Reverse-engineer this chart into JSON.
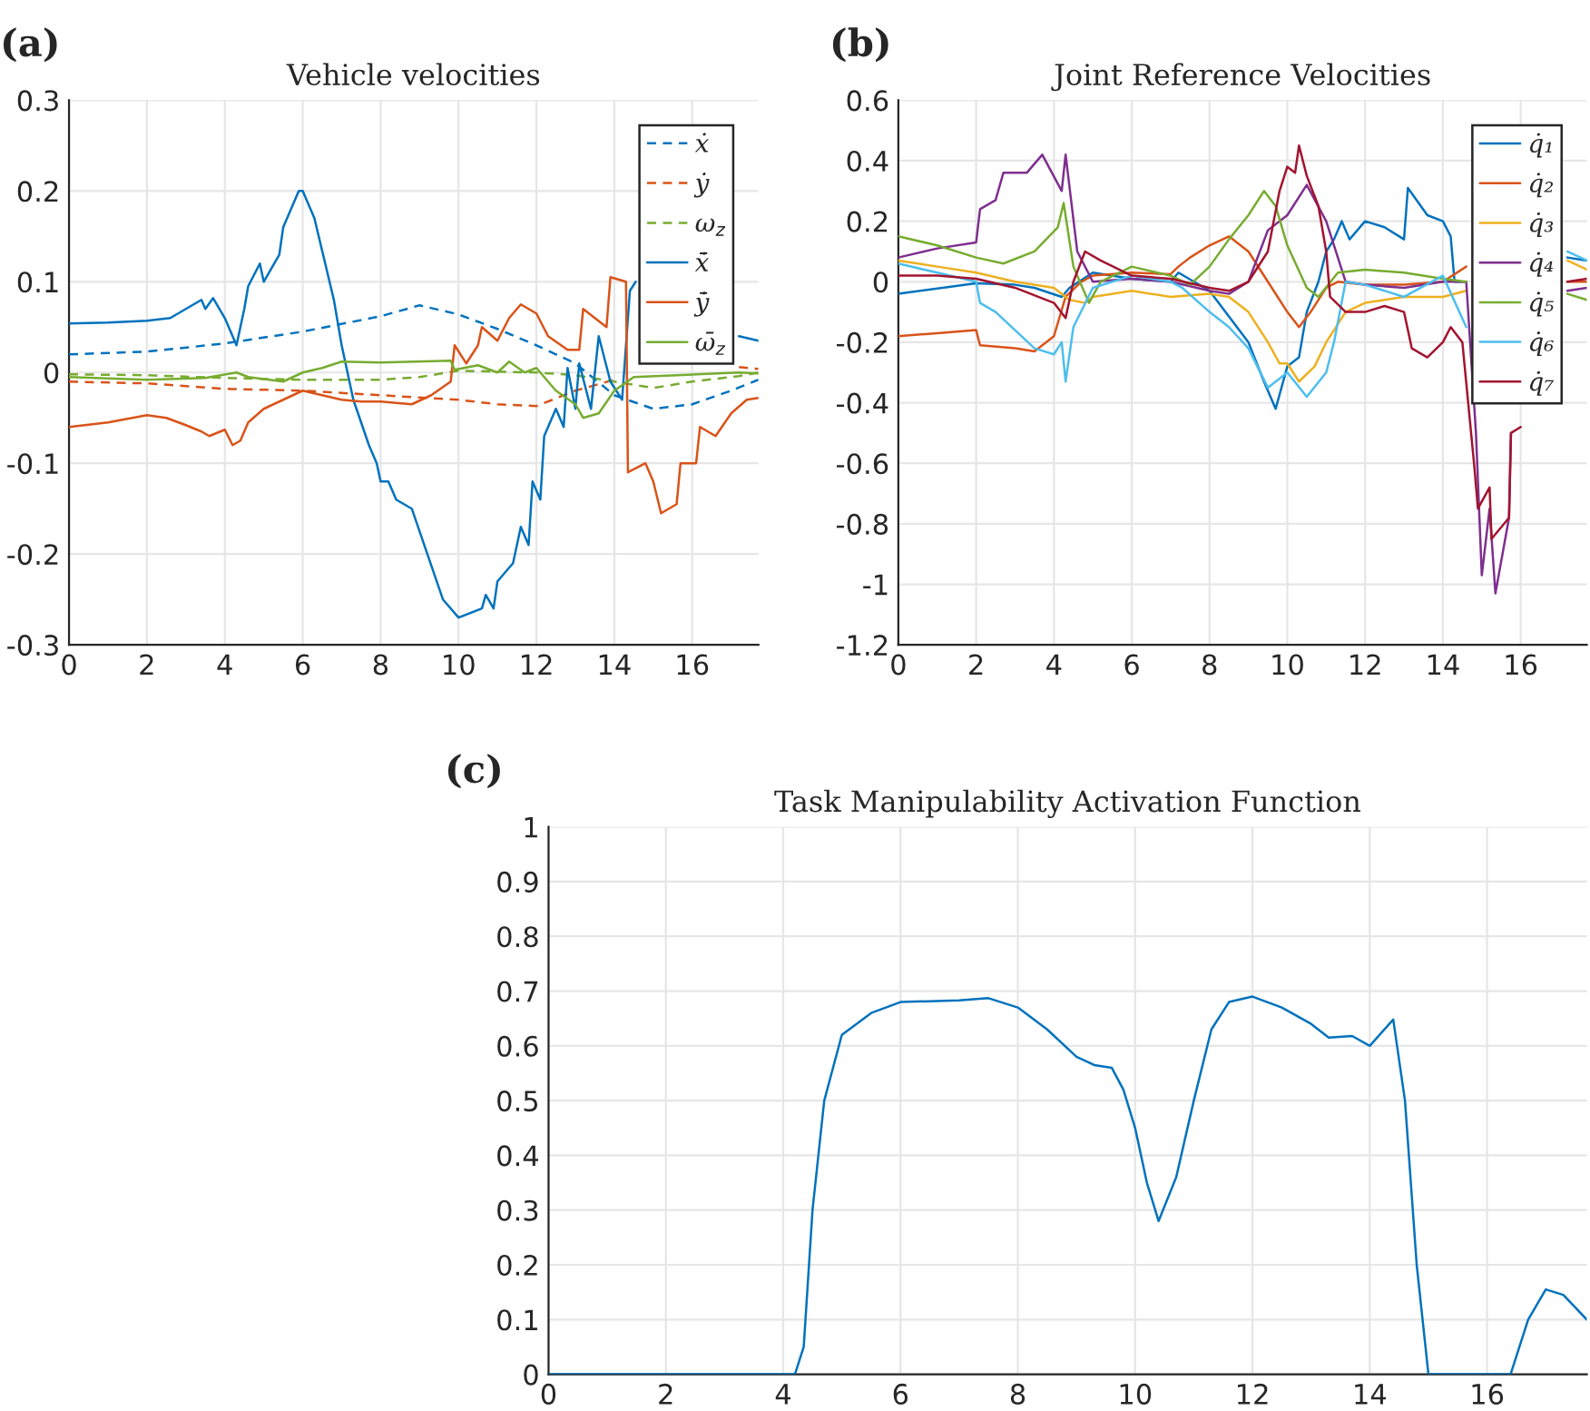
{
  "chart_data": [
    {
      "type": "line",
      "title": "Vehicle velocities",
      "annotations": [
        "(a)"
      ],
      "xlim": [
        0,
        17.7
      ],
      "xticks": [
        0,
        2,
        4,
        6,
        8,
        10,
        12,
        14,
        16
      ],
      "ylim": [
        -0.3,
        0.3
      ],
      "yticks": [
        -0.3,
        -0.2,
        -0.1,
        0,
        0.1,
        0.2,
        0.3
      ],
      "grid": true,
      "legend": "top right",
      "series": [
        {
          "name": "ẋ",
          "color": "#0072bd",
          "line_style": "dashed",
          "x": [
            0,
            2,
            4,
            6,
            8,
            9,
            10,
            11,
            12,
            13,
            14,
            15,
            16,
            17,
            17.7
          ],
          "values": [
            0.02,
            0.023,
            0.032,
            0.045,
            0.062,
            0.074,
            0.064,
            0.048,
            0.03,
            0.01,
            -0.025,
            -0.04,
            -0.035,
            -0.02,
            -0.008
          ]
        },
        {
          "name": "ẏ",
          "color": "#d95319",
          "line_style": "dashed",
          "x": [
            0,
            2,
            4,
            6,
            8,
            10,
            11,
            12,
            13,
            14,
            15,
            16,
            17.2,
            17.7
          ],
          "values": [
            -0.01,
            -0.012,
            -0.018,
            -0.02,
            -0.025,
            -0.03,
            -0.035,
            -0.037,
            -0.02,
            -0.008,
            null,
            null,
            0.006,
            0.004
          ]
        },
        {
          "name": "ω$_{z}$",
          "color": "#77ac30",
          "line_style": "dashed",
          "x": [
            0,
            2,
            4,
            6,
            8,
            9,
            10,
            12,
            13,
            14,
            15,
            16,
            17.2,
            17.7
          ],
          "values": [
            -0.002,
            -0.003,
            -0.006,
            -0.008,
            -0.008,
            -0.005,
            0.002,
            0,
            -0.003,
            -0.01,
            -0.017,
            -0.01,
            -0.004,
            0
          ]
        },
        {
          "name": "ẋ̄",
          "color": "#0072bd",
          "line_style": "solid",
          "x": [
            0,
            1,
            2,
            2.6,
            3.2,
            3.4,
            3.5,
            3.7,
            4,
            4.3,
            4.5,
            4.6,
            4.9,
            5,
            5.4,
            5.5,
            5.9,
            6,
            6.3,
            6.8,
            7,
            7.3,
            7.7,
            7.9,
            8,
            8.2,
            8.4,
            8.8,
            9.2,
            9.6,
            10,
            10.6,
            10.7,
            10.9,
            11,
            11.4,
            11.6,
            11.8,
            11.9,
            12.1,
            12.2,
            12.5,
            12.7,
            12.8,
            13,
            13.1,
            13.4,
            13.6,
            13.9,
            14.2,
            14.4,
            14.55,
            16,
            17.2,
            17.7
          ],
          "values": [
            0.054,
            0.055,
            0.057,
            0.06,
            0.075,
            0.08,
            0.07,
            0.082,
            0.06,
            0.03,
            0.07,
            0.095,
            0.12,
            0.1,
            0.13,
            0.16,
            0.2,
            0.2,
            0.17,
            0.08,
            0.03,
            -0.03,
            -0.08,
            -0.1,
            -0.12,
            -0.12,
            -0.14,
            -0.15,
            -0.2,
            -0.25,
            -0.27,
            -0.26,
            -0.245,
            -0.26,
            -0.23,
            -0.21,
            -0.17,
            -0.19,
            -0.12,
            -0.14,
            -0.07,
            -0.04,
            -0.06,
            0.005,
            -0.04,
            0.01,
            -0.04,
            0.04,
            -0.01,
            -0.03,
            0.09,
            0.1,
            null,
            0.04,
            0.035
          ]
        },
        {
          "name": "ẏ̄",
          "color": "#d95319",
          "line_style": "solid",
          "x": [
            0,
            1,
            2,
            2.5,
            3,
            3.4,
            3.6,
            4,
            4.2,
            4.4,
            4.6,
            5,
            5.5,
            6,
            6.5,
            7,
            7.5,
            8,
            8.8,
            9.3,
            9.8,
            9.9,
            10.2,
            10.5,
            10.6,
            11,
            11.3,
            11.6,
            12,
            12.3,
            12.8,
            13.1,
            13.2,
            13.8,
            13.9,
            14.3,
            14.35,
            14.8,
            15,
            15.2,
            15.6,
            15.7,
            16.1,
            16.2,
            16.6,
            17,
            17.4,
            17.7
          ],
          "values": [
            -0.06,
            -0.055,
            -0.047,
            -0.05,
            -0.058,
            -0.065,
            -0.07,
            -0.063,
            -0.08,
            -0.075,
            -0.055,
            -0.04,
            -0.03,
            -0.02,
            -0.025,
            -0.03,
            -0.032,
            -0.032,
            -0.035,
            -0.025,
            -0.01,
            0.03,
            0.01,
            0.03,
            0.05,
            0.035,
            0.06,
            0.075,
            0.065,
            0.04,
            0.025,
            0.025,
            0.07,
            0.05,
            0.105,
            0.1,
            -0.11,
            -0.1,
            -0.12,
            -0.155,
            -0.145,
            -0.1,
            -0.1,
            -0.06,
            -0.07,
            -0.045,
            -0.03,
            -0.028
          ]
        },
        {
          "name": "ω̄$_{z}$",
          "color": "#77ac30",
          "line_style": "solid",
          "x": [
            0,
            2,
            3.5,
            4.3,
            4.6,
            5.5,
            6,
            6.5,
            7,
            8,
            9.8,
            9.9,
            10.5,
            11,
            11.3,
            11.7,
            12,
            12.5,
            13,
            13.2,
            13.6,
            14,
            14.5,
            17.2,
            17.7
          ],
          "values": [
            -0.005,
            -0.008,
            -0.006,
            0,
            -0.005,
            -0.01,
            0,
            0.005,
            0.012,
            0.011,
            0.013,
            0.003,
            0.008,
            0,
            0.012,
            0,
            0.005,
            -0.02,
            -0.035,
            -0.05,
            -0.045,
            -0.02,
            -0.005,
            0,
            -0.001
          ]
        }
      ]
    },
    {
      "type": "line",
      "title": "Joint Reference Velocities",
      "annotations": [
        "(b)"
      ],
      "xlim": [
        0,
        17.7
      ],
      "xticks": [
        0,
        2,
        4,
        6,
        8,
        10,
        12,
        14,
        16
      ],
      "ylim": [
        -1.2,
        0.6
      ],
      "yticks": [
        -1.2,
        -1,
        -0.8,
        -0.6,
        -0.4,
        -0.2,
        0,
        0.2,
        0.4,
        0.6
      ],
      "grid": true,
      "legend": "top right",
      "series": [
        {
          "name": "q̇₁",
          "color": "#0072bd",
          "x": [
            0,
            2,
            3,
            3.5,
            4.2,
            4.4,
            5,
            6,
            7,
            7.2,
            8,
            9,
            9.4,
            9.7,
            10,
            10.3,
            10.5,
            10.8,
            11,
            11.2,
            11.4,
            11.6,
            12,
            12.5,
            13,
            13.1,
            13.6,
            14,
            14.2,
            14.3,
            14.6,
            16,
            17.2,
            17.7
          ],
          "values": [
            -0.04,
            -0.005,
            -0.01,
            -0.02,
            -0.05,
            -0.02,
            0.03,
            0.01,
            0,
            0.03,
            -0.03,
            -0.2,
            -0.33,
            -0.42,
            -0.28,
            -0.25,
            -0.1,
            0,
            0.1,
            0.14,
            0.2,
            0.14,
            0.2,
            0.18,
            0.14,
            0.31,
            0.22,
            0.2,
            0.15,
            0,
            0,
            null,
            0.08,
            0.07
          ]
        },
        {
          "name": "q̇₂",
          "color": "#d95319",
          "x": [
            0,
            1,
            2,
            2.1,
            3,
            3.5,
            4,
            4.3,
            4.7,
            5,
            6,
            7,
            7.2,
            7.5,
            8,
            8.5,
            9,
            9.5,
            10,
            10.3,
            10.6,
            11,
            11.3,
            12,
            13,
            14,
            14.6,
            16,
            17.2,
            17.7
          ],
          "values": [
            -0.18,
            -0.17,
            -0.16,
            -0.21,
            -0.22,
            -0.23,
            -0.18,
            -0.05,
            0,
            0.02,
            0.03,
            0.025,
            0.05,
            0.08,
            0.12,
            0.15,
            0.1,
            0,
            -0.1,
            -0.15,
            -0.1,
            -0.02,
            0,
            -0.01,
            -0.01,
            0,
            0.05,
            null,
            0,
            0
          ]
        },
        {
          "name": "q̇₃",
          "color": "#edb120",
          "x": [
            0,
            1,
            2,
            3,
            4,
            4.4,
            4.8,
            5,
            6,
            7,
            8,
            8.5,
            9,
            9.5,
            9.8,
            10,
            10.3,
            10.7,
            11,
            11.5,
            12,
            13,
            14,
            14.6,
            16,
            17.2,
            17.7
          ],
          "values": [
            0.07,
            0.05,
            0.03,
            0,
            -0.02,
            -0.06,
            -0.07,
            -0.05,
            -0.03,
            -0.05,
            -0.04,
            -0.05,
            -0.1,
            -0.2,
            -0.27,
            -0.27,
            -0.33,
            -0.28,
            -0.2,
            -0.1,
            -0.07,
            -0.05,
            -0.05,
            -0.03,
            null,
            0.07,
            0.04
          ]
        },
        {
          "name": "q̇₄",
          "color": "#7e2f8e",
          "x": [
            0,
            1,
            2,
            2.1,
            2.5,
            2.7,
            3.3,
            3.7,
            4.2,
            4.3,
            4.6,
            5,
            6,
            7,
            8,
            8.5,
            9,
            9.5,
            10,
            10.5,
            11,
            11.5,
            12,
            13,
            14,
            14.6,
            14.85,
            15,
            15.2,
            15.35,
            15.7,
            15.75,
            16,
            17.2,
            17.7
          ],
          "values": [
            0.08,
            0.11,
            0.13,
            0.24,
            0.27,
            0.36,
            0.36,
            0.42,
            0.3,
            0.42,
            0.1,
            0,
            0.01,
            0,
            -0.03,
            -0.04,
            0,
            0.17,
            0.22,
            0.32,
            0.2,
            0,
            -0.01,
            -0.02,
            0,
            0,
            -0.5,
            -0.97,
            -0.75,
            -1.03,
            -0.78,
            -0.5,
            null,
            -0.03,
            -0.02
          ]
        },
        {
          "name": "q̇₅",
          "color": "#77ac30",
          "x": [
            0,
            1,
            2,
            2.7,
            3.5,
            4.1,
            4.25,
            4.5,
            4.9,
            5.2,
            6,
            7,
            7.5,
            8,
            8.5,
            9,
            9.4,
            9.7,
            10,
            10.5,
            10.8,
            11.3,
            12,
            13,
            14,
            14.6,
            16,
            17.2,
            17.7
          ],
          "values": [
            0.15,
            0.12,
            0.08,
            0.06,
            0.1,
            0.18,
            0.26,
            0.05,
            -0.07,
            0,
            0.05,
            0.02,
            -0.01,
            0.05,
            0.14,
            0.22,
            0.3,
            0.25,
            0.12,
            -0.02,
            -0.05,
            0.03,
            0.04,
            0.03,
            0.01,
            0,
            null,
            -0.04,
            -0.06
          ]
        },
        {
          "name": "q̇₆",
          "color": "#4dbeee",
          "x": [
            0,
            1,
            2,
            2.1,
            2.5,
            3,
            3.5,
            4,
            4.2,
            4.3,
            4.5,
            5,
            6,
            7,
            7.3,
            8,
            8.5,
            9,
            9.5,
            10,
            10.5,
            11,
            11.2,
            11.5,
            12,
            13,
            14,
            14.6,
            16,
            17.2,
            17.7
          ],
          "values": [
            0.06,
            0.03,
            0,
            -0.07,
            -0.1,
            -0.16,
            -0.22,
            -0.24,
            -0.2,
            -0.33,
            -0.15,
            -0.02,
            0.02,
            0,
            -0.02,
            -0.1,
            -0.15,
            -0.22,
            -0.35,
            -0.3,
            -0.38,
            -0.3,
            -0.2,
            0,
            -0.01,
            -0.05,
            0.02,
            -0.15,
            null,
            0.1,
            0.07
          ]
        },
        {
          "name": "q̇₇",
          "color": "#a2142f",
          "x": [
            0,
            1,
            2,
            3,
            4,
            4.3,
            4.5,
            4.8,
            5.2,
            6,
            7,
            8,
            8.5,
            9,
            9.5,
            9.8,
            10,
            10.2,
            10.3,
            10.5,
            10.8,
            11,
            11.1,
            11.5,
            12,
            12.5,
            13,
            13.2,
            13.6,
            14,
            14.2,
            14.5,
            14.8,
            14.9,
            15.2,
            15.25,
            15.7,
            15.75,
            16,
            16.5,
            17.2,
            17.7
          ],
          "values": [
            0.02,
            0.02,
            0.01,
            -0.02,
            -0.07,
            -0.12,
            0,
            0.1,
            0.07,
            0.02,
            0.01,
            -0.02,
            -0.03,
            0,
            0.1,
            0.3,
            0.38,
            0.36,
            0.45,
            0.35,
            0.25,
            0.1,
            -0.05,
            -0.1,
            -0.1,
            -0.08,
            -0.1,
            -0.22,
            -0.25,
            -0.2,
            -0.15,
            -0.2,
            -0.6,
            -0.75,
            -0.68,
            -0.85,
            -0.78,
            -0.5,
            -0.48,
            null,
            0,
            0.01
          ]
        }
      ]
    },
    {
      "type": "line",
      "title": "Task Manipulability Activation Function",
      "annotations": [
        "(c)"
      ],
      "xlim": [
        0,
        17.7
      ],
      "xticks": [
        0,
        2,
        4,
        6,
        8,
        10,
        12,
        14,
        16
      ],
      "ylim": [
        0,
        1
      ],
      "yticks": [
        0,
        0.1,
        0.2,
        0.3,
        0.4,
        0.5,
        0.6,
        0.7,
        0.8,
        0.9,
        1
      ],
      "grid": true,
      "series": [
        {
          "color": "#0072bd",
          "x": [
            0,
            4.2,
            4.35,
            4.5,
            4.7,
            5,
            5.5,
            6,
            7,
            7.5,
            8,
            8.5,
            9,
            9.3,
            9.6,
            9.8,
            10,
            10.2,
            10.4,
            10.7,
            11,
            11.3,
            11.6,
            12,
            12.5,
            13,
            13.3,
            13.7,
            14,
            14.4,
            14.6,
            14.8,
            15,
            16.4,
            16.7,
            17,
            17.3,
            17.7
          ],
          "values": [
            0,
            0,
            0.05,
            0.3,
            0.5,
            0.62,
            0.66,
            0.68,
            0.683,
            0.687,
            0.67,
            0.63,
            0.58,
            0.565,
            0.56,
            0.52,
            0.45,
            0.35,
            0.28,
            0.36,
            0.5,
            0.63,
            0.68,
            0.69,
            0.67,
            0.64,
            0.615,
            0.618,
            0.6,
            0.648,
            0.5,
            0.2,
            0,
            0,
            0.1,
            0.155,
            0.145,
            0.1
          ]
        }
      ]
    }
  ]
}
